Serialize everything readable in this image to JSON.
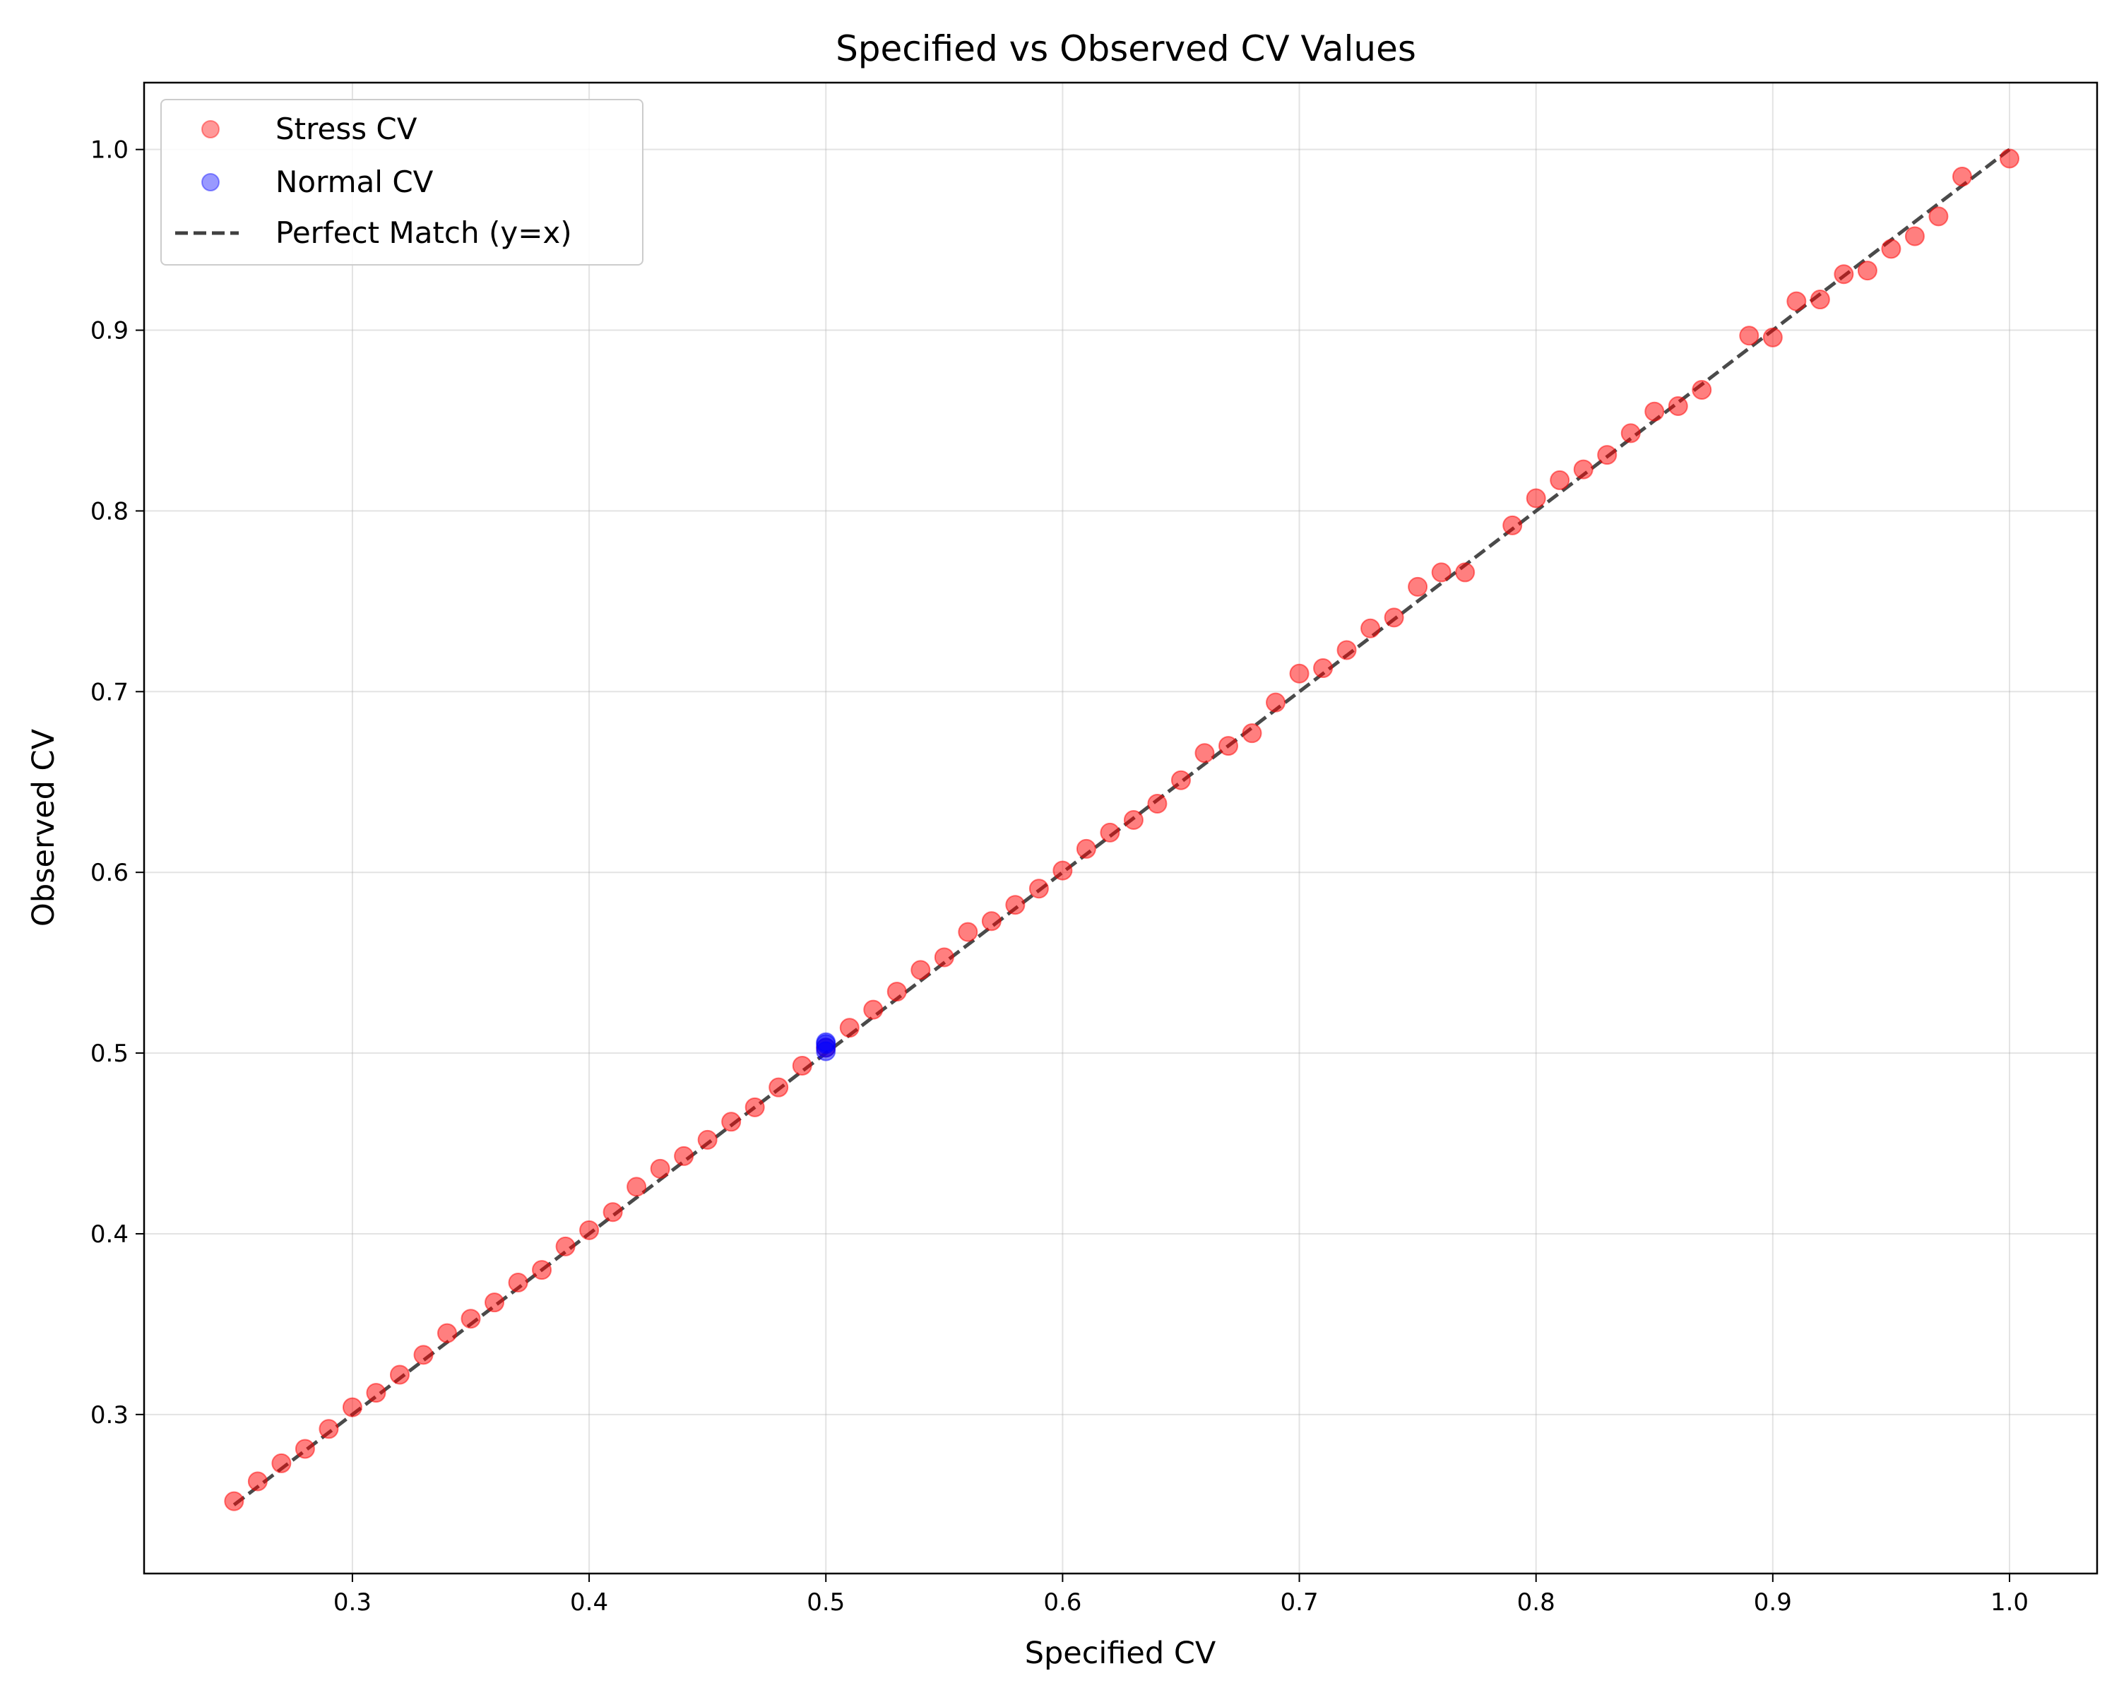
{
  "chart_data": {
    "type": "scatter",
    "title": "Specified vs Observed CV Values",
    "xlabel": "Specified CV",
    "ylabel": "Observed CV",
    "xlim": [
      0.212,
      1.037
    ],
    "ylim": [
      0.212,
      1.037
    ],
    "xticks": [
      0.3,
      0.4,
      0.5,
      0.6,
      0.7,
      0.8,
      0.9,
      1.0
    ],
    "xtick_labels": [
      "0.3",
      "0.4",
      "0.5",
      "0.6",
      "0.7",
      "0.8",
      "0.9",
      "1.0"
    ],
    "yticks": [
      0.3,
      0.4,
      0.5,
      0.6,
      0.7,
      0.8,
      0.9,
      1.0
    ],
    "ytick_labels": [
      "0.3",
      "0.4",
      "0.5",
      "0.6",
      "0.7",
      "0.8",
      "0.9",
      "1.0"
    ],
    "grid": true,
    "legend_position": "top-left",
    "series": [
      {
        "name": "Stress CV",
        "kind": "scatter",
        "color": "#ff0000",
        "points": [
          [
            0.25,
            0.252
          ],
          [
            0.26,
            0.263
          ],
          [
            0.27,
            0.273
          ],
          [
            0.28,
            0.281
          ],
          [
            0.29,
            0.292
          ],
          [
            0.3,
            0.304
          ],
          [
            0.31,
            0.312
          ],
          [
            0.32,
            0.322
          ],
          [
            0.33,
            0.333
          ],
          [
            0.34,
            0.345
          ],
          [
            0.35,
            0.353
          ],
          [
            0.36,
            0.362
          ],
          [
            0.37,
            0.373
          ],
          [
            0.38,
            0.38
          ],
          [
            0.39,
            0.393
          ],
          [
            0.4,
            0.402
          ],
          [
            0.41,
            0.412
          ],
          [
            0.42,
            0.426
          ],
          [
            0.43,
            0.436
          ],
          [
            0.44,
            0.443
          ],
          [
            0.45,
            0.452
          ],
          [
            0.46,
            0.462
          ],
          [
            0.47,
            0.47
          ],
          [
            0.48,
            0.481
          ],
          [
            0.49,
            0.493
          ],
          [
            0.5,
            0.503
          ],
          [
            0.51,
            0.514
          ],
          [
            0.52,
            0.524
          ],
          [
            0.53,
            0.534
          ],
          [
            0.54,
            0.546
          ],
          [
            0.55,
            0.553
          ],
          [
            0.56,
            0.567
          ],
          [
            0.57,
            0.573
          ],
          [
            0.58,
            0.582
          ],
          [
            0.59,
            0.591
          ],
          [
            0.6,
            0.601
          ],
          [
            0.61,
            0.613
          ],
          [
            0.62,
            0.622
          ],
          [
            0.63,
            0.629
          ],
          [
            0.64,
            0.638
          ],
          [
            0.65,
            0.651
          ],
          [
            0.66,
            0.666
          ],
          [
            0.67,
            0.67
          ],
          [
            0.68,
            0.677
          ],
          [
            0.69,
            0.694
          ],
          [
            0.7,
            0.71
          ],
          [
            0.71,
            0.713
          ],
          [
            0.72,
            0.723
          ],
          [
            0.73,
            0.735
          ],
          [
            0.74,
            0.741
          ],
          [
            0.75,
            0.758
          ],
          [
            0.76,
            0.766
          ],
          [
            0.77,
            0.766
          ],
          [
            0.79,
            0.792
          ],
          [
            0.8,
            0.807
          ],
          [
            0.81,
            0.817
          ],
          [
            0.82,
            0.823
          ],
          [
            0.83,
            0.831
          ],
          [
            0.84,
            0.843
          ],
          [
            0.85,
            0.855
          ],
          [
            0.86,
            0.858
          ],
          [
            0.87,
            0.867
          ],
          [
            0.89,
            0.897
          ],
          [
            0.9,
            0.896
          ],
          [
            0.91,
            0.916
          ],
          [
            0.92,
            0.917
          ],
          [
            0.93,
            0.931
          ],
          [
            0.94,
            0.933
          ],
          [
            0.95,
            0.945
          ],
          [
            0.96,
            0.952
          ],
          [
            0.97,
            0.963
          ],
          [
            0.98,
            0.985
          ],
          [
            1.0,
            0.995
          ]
        ]
      },
      {
        "name": "Normal CV",
        "kind": "scatter",
        "color": "#0000ff",
        "points": [
          [
            0.5,
            0.501
          ],
          [
            0.5,
            0.503
          ],
          [
            0.5,
            0.505
          ],
          [
            0.5,
            0.506
          ]
        ]
      },
      {
        "name": "Perfect Match (y=x)",
        "kind": "line",
        "style": "dashed",
        "color": "#404040",
        "points": [
          [
            0.25,
            0.25
          ],
          [
            1.0,
            1.0
          ]
        ]
      }
    ]
  }
}
